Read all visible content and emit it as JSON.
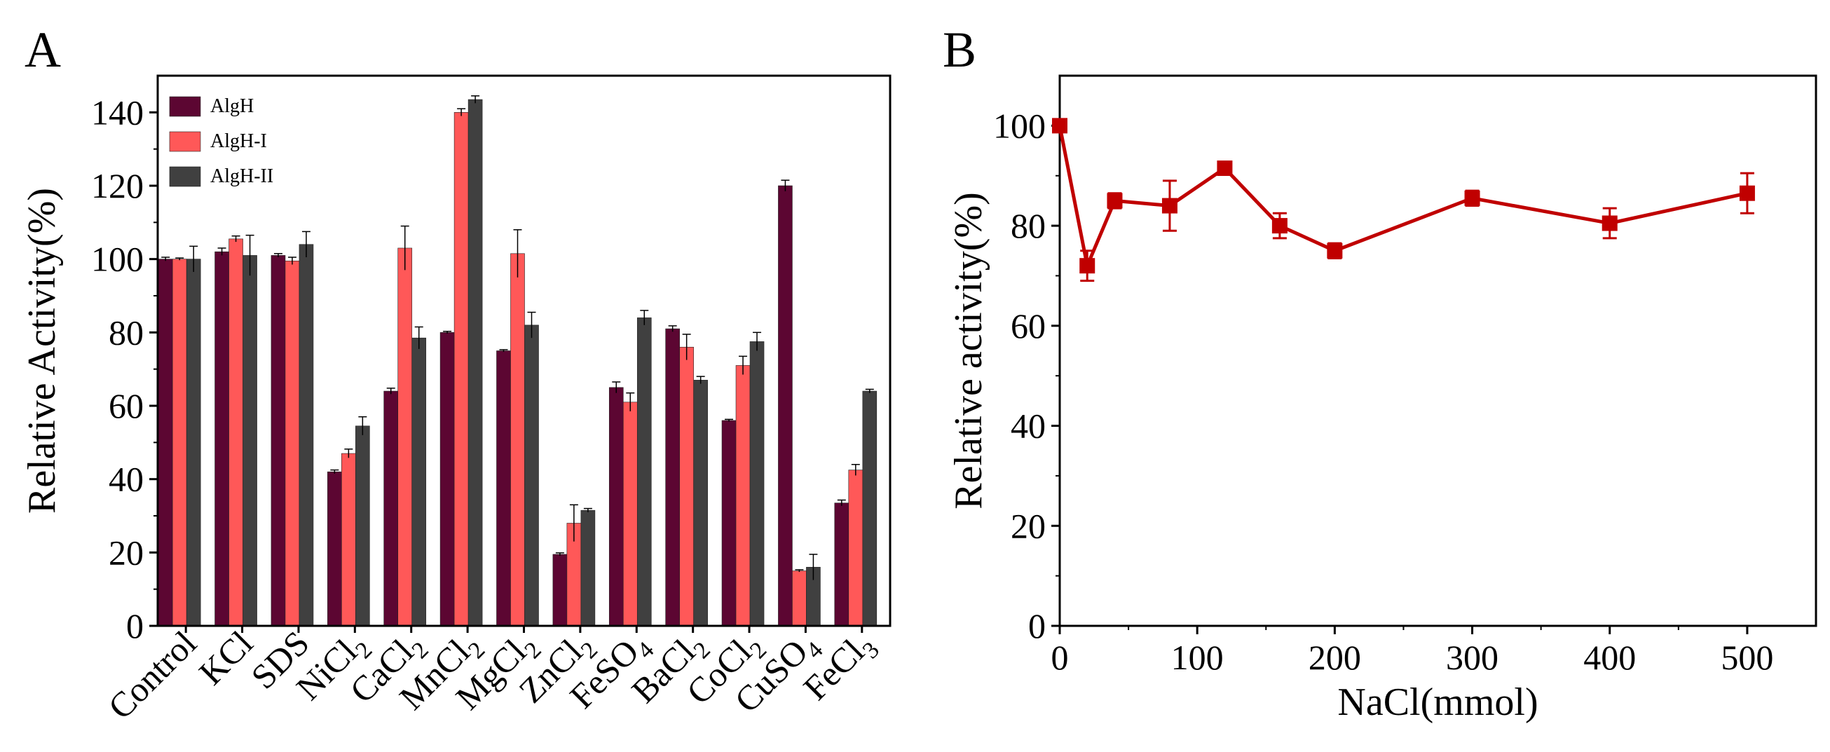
{
  "figure": {
    "colors": {
      "algh": "#5c0632",
      "algh1": "#ff5858",
      "algh2": "#404040",
      "lineB": "#c00000",
      "axis": "#000000"
    }
  },
  "chart_data": [
    {
      "panel": "A",
      "type": "bar",
      "title": "",
      "xlabel": "",
      "ylabel": "Relative Activity(%)",
      "ylim": [
        0,
        150
      ],
      "yticks": [
        0,
        20,
        40,
        60,
        80,
        100,
        120,
        140
      ],
      "categories": [
        {
          "base": "Control",
          "sub": "",
          "after": ""
        },
        {
          "base": "KCl",
          "sub": "",
          "after": ""
        },
        {
          "base": "SDS",
          "sub": "",
          "after": ""
        },
        {
          "base": "NiCl",
          "sub": "2",
          "after": ""
        },
        {
          "base": "CaCl",
          "sub": "2",
          "after": ""
        },
        {
          "base": "MnCl",
          "sub": "2",
          "after": ""
        },
        {
          "base": "MgCl",
          "sub": "2",
          "after": ""
        },
        {
          "base": "ZnCl",
          "sub": "2",
          "after": ""
        },
        {
          "base": "FeSO",
          "sub": "4",
          "after": ""
        },
        {
          "base": "BaCl",
          "sub": "2",
          "after": ""
        },
        {
          "base": "CoCl",
          "sub": "2",
          "after": ""
        },
        {
          "base": "CuSO",
          "sub": "4",
          "after": ""
        },
        {
          "base": "FeCl",
          "sub": "3",
          "after": ""
        }
      ],
      "legend": {
        "position": "top-left"
      },
      "series": [
        {
          "name": "AlgH",
          "color_key": "algh",
          "values": [
            100,
            102,
            101,
            42,
            64,
            80,
            75,
            19.5,
            65,
            81,
            56,
            120,
            33.5
          ],
          "errors": [
            0.5,
            1,
            0.5,
            0.5,
            0.8,
            0.3,
            0.3,
            0.4,
            1.5,
            0.8,
            0.3,
            1.5,
            0.8
          ]
        },
        {
          "name": "AlgH-I",
          "color_key": "algh1",
          "values": [
            100,
            105.5,
            99.5,
            47,
            103,
            140,
            101.5,
            28,
            61,
            76,
            71,
            15,
            42.5
          ],
          "errors": [
            0.3,
            0.8,
            1,
            1.2,
            6,
            1,
            6.5,
            5,
            2.5,
            3.5,
            2.5,
            0.3,
            1.5
          ]
        },
        {
          "name": "AlgH-II",
          "color_key": "algh2",
          "values": [
            100,
            101,
            104,
            54.5,
            78.5,
            143.5,
            82,
            31.5,
            84,
            67,
            77.5,
            16,
            64
          ],
          "errors": [
            3.5,
            5.5,
            3.5,
            2.5,
            3,
            1,
            3.5,
            0.5,
            2,
            1,
            2.5,
            3.5,
            0.5
          ]
        }
      ]
    },
    {
      "panel": "B",
      "type": "line",
      "title": "",
      "xlabel": "NaCl(mmol)",
      "ylabel": "Relative activity(%)",
      "xlim": [
        0,
        550
      ],
      "ylim": [
        0,
        110
      ],
      "xticks": [
        0,
        100,
        200,
        300,
        400,
        500
      ],
      "yticks": [
        0,
        20,
        40,
        60,
        80,
        100
      ],
      "color_key": "lineB",
      "x": [
        0,
        20,
        40,
        80,
        120,
        160,
        200,
        300,
        400,
        500
      ],
      "y": [
        100,
        72,
        85,
        84,
        91.5,
        80,
        75,
        85.5,
        80.5,
        86.5
      ],
      "errors": [
        0,
        3,
        1.5,
        5,
        0.5,
        2.5,
        1.5,
        1.5,
        3,
        4
      ]
    }
  ]
}
